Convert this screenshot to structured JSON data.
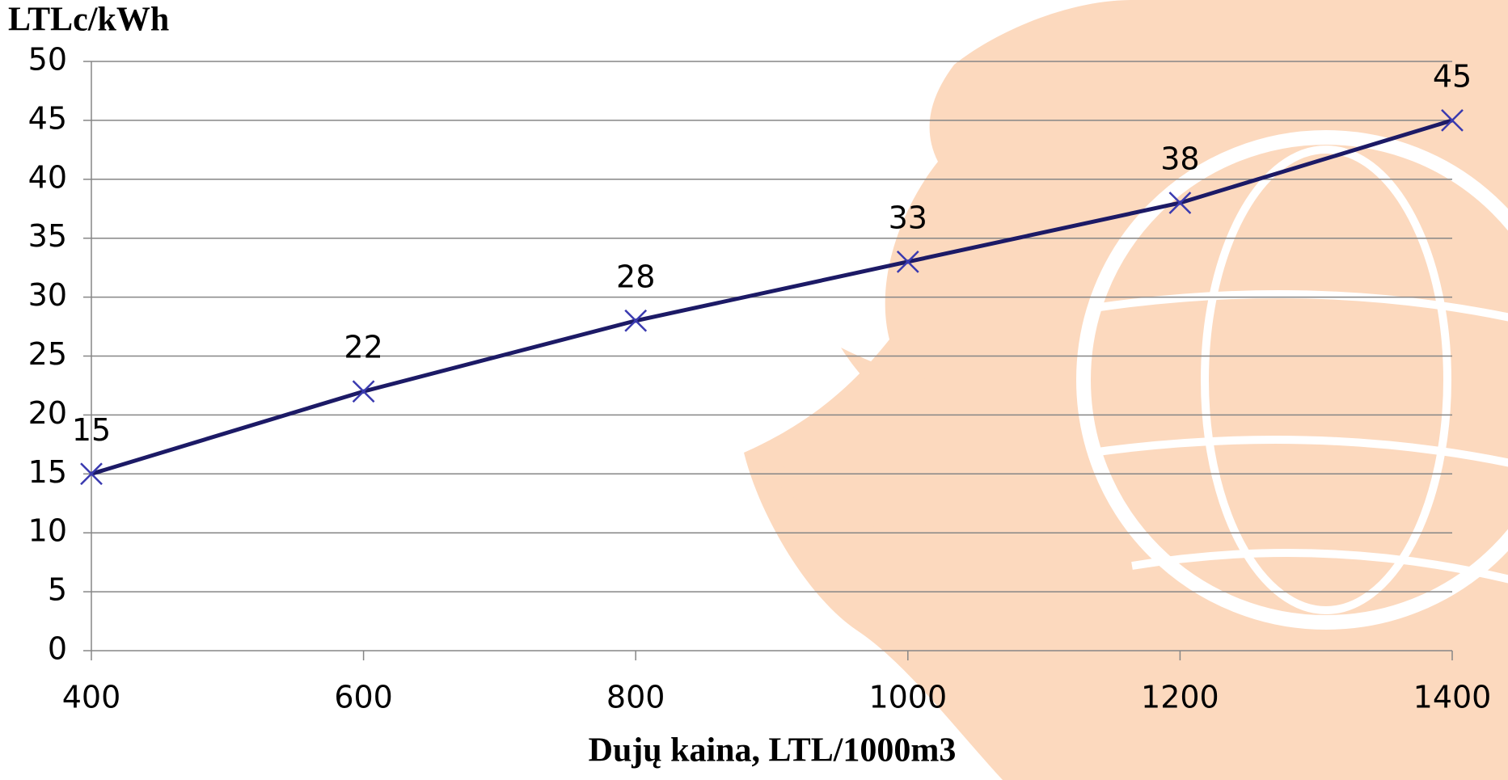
{
  "chart_data": {
    "type": "line",
    "y_axis_label": "LTLc/kWh",
    "x_axis_label": "Dujų kaina, LTL/1000m3",
    "x": [
      400,
      600,
      800,
      1000,
      1200,
      1400
    ],
    "series": [
      {
        "color": "#1c1a66",
        "values": [
          15,
          22,
          28,
          33,
          38,
          45
        ]
      }
    ],
    "xlim": [
      400,
      1400
    ],
    "xticks": [
      400,
      600,
      800,
      1000,
      1200,
      1400
    ],
    "ylim": [
      0,
      50
    ],
    "yticks": [
      0,
      5,
      10,
      15,
      20,
      25,
      30,
      35,
      40,
      45,
      50
    ],
    "grid": true
  }
}
